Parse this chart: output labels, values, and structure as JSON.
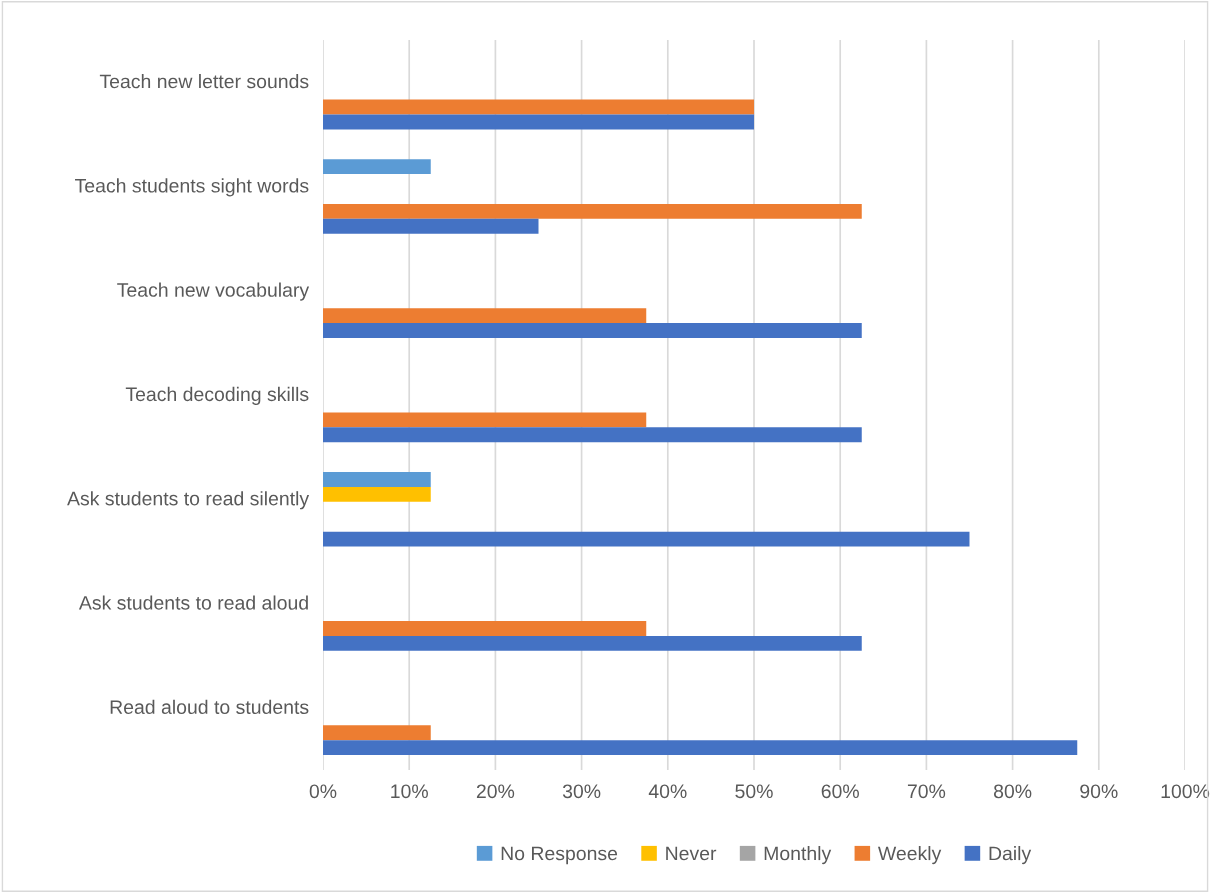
{
  "chart_data": {
    "type": "bar",
    "orientation": "horizontal",
    "categories": [
      "Teach new letter sounds",
      "Teach students sight words",
      "Teach new vocabulary",
      "Teach decoding skills",
      "Ask students to read silently",
      "Ask students to read aloud",
      "Read aloud to students"
    ],
    "series": [
      {
        "name": "No Response",
        "color": "#5b9bd5",
        "values": [
          0,
          12.5,
          0,
          0,
          12.5,
          0,
          0
        ]
      },
      {
        "name": "Never",
        "color": "#ffc000",
        "values": [
          0,
          0,
          0,
          0,
          12.5,
          0,
          0
        ]
      },
      {
        "name": "Monthly",
        "color": "#a5a5a5",
        "values": [
          0,
          0,
          0,
          0,
          0,
          0,
          0
        ]
      },
      {
        "name": "Weekly",
        "color": "#ed7d31",
        "values": [
          50,
          62.5,
          37.5,
          37.5,
          0,
          37.5,
          12.5
        ]
      },
      {
        "name": "Daily",
        "color": "#4472c4",
        "values": [
          50,
          25,
          62.5,
          62.5,
          75,
          62.5,
          87.5
        ]
      }
    ],
    "xlim": [
      0,
      100
    ],
    "xticks": [
      {
        "value": 0,
        "label": "0%"
      },
      {
        "value": 10,
        "label": "10%"
      },
      {
        "value": 20,
        "label": "20%"
      },
      {
        "value": 30,
        "label": "30%"
      },
      {
        "value": 40,
        "label": "40%"
      },
      {
        "value": 50,
        "label": "50%"
      },
      {
        "value": 60,
        "label": "60%"
      },
      {
        "value": 70,
        "label": "70%"
      },
      {
        "value": 80,
        "label": "80%"
      },
      {
        "value": 90,
        "label": "90%"
      },
      {
        "value": 100,
        "label": "100%"
      }
    ],
    "grid": "x",
    "legend": "bottom"
  }
}
